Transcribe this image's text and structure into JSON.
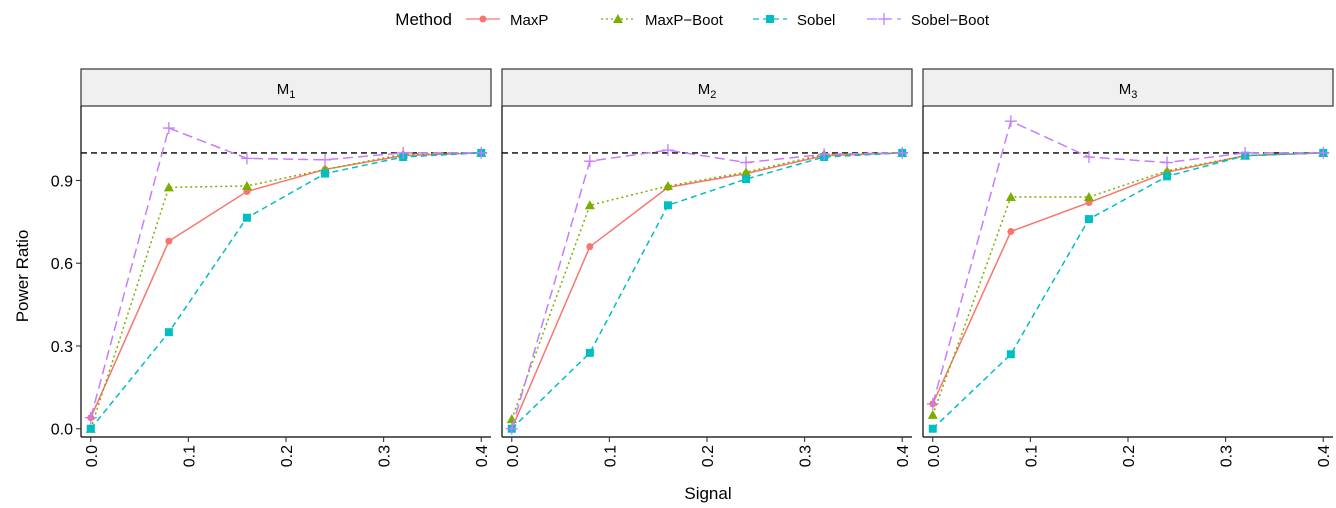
{
  "chart_data": {
    "type": "line",
    "xlabel": "Signal",
    "ylabel": "Power Ratio",
    "legend": {
      "title": "Method",
      "position": "top"
    },
    "x": [
      0.0,
      0.08,
      0.16,
      0.24,
      0.32,
      0.4
    ],
    "xticks": [
      "0.0",
      "0.1",
      "0.2",
      "0.3",
      "0.4"
    ],
    "xtick_values": [
      0.0,
      0.1,
      0.2,
      0.3,
      0.4
    ],
    "yticks": [
      "0.0",
      "0.3",
      "0.6",
      "0.9"
    ],
    "ytick_values": [
      0.0,
      0.3,
      0.6,
      0.9
    ],
    "xlim": [
      -0.01,
      0.41
    ],
    "ylim": [
      -0.03,
      1.17
    ],
    "reference_line": 1.0,
    "grid": false,
    "series_styles": [
      {
        "name": "MaxP",
        "color": "#F8766D",
        "dash": "none",
        "marker": "circle"
      },
      {
        "name": "MaxP−Boot",
        "color": "#7CAE00",
        "dash": "dotted",
        "marker": "triangle"
      },
      {
        "name": "Sobel",
        "color": "#00BFC4",
        "dash": "dashed",
        "marker": "square"
      },
      {
        "name": "Sobel−Boot",
        "color": "#C77CFF",
        "dash": "longdash",
        "marker": "plus"
      }
    ],
    "panels": [
      {
        "label": "M",
        "sub": "1",
        "series": [
          {
            "name": "MaxP",
            "values": [
              0.04,
              0.68,
              0.86,
              0.94,
              0.99,
              1.0
            ]
          },
          {
            "name": "MaxP−Boot",
            "values": [
              0.0,
              0.875,
              0.88,
              0.94,
              0.995,
              1.0
            ]
          },
          {
            "name": "Sobel",
            "values": [
              0.0,
              0.35,
              0.765,
              0.925,
              0.985,
              1.0
            ]
          },
          {
            "name": "Sobel−Boot",
            "values": [
              0.04,
              1.09,
              0.98,
              0.975,
              1.0,
              1.0
            ]
          }
        ]
      },
      {
        "label": "M",
        "sub": "2",
        "series": [
          {
            "name": "MaxP",
            "values": [
              0.0,
              0.66,
              0.875,
              0.925,
              0.99,
              1.0
            ]
          },
          {
            "name": "MaxP−Boot",
            "values": [
              0.035,
              0.81,
              0.88,
              0.93,
              0.995,
              1.0
            ]
          },
          {
            "name": "Sobel",
            "values": [
              0.0,
              0.275,
              0.81,
              0.905,
              0.985,
              1.0
            ]
          },
          {
            "name": "Sobel−Boot",
            "values": [
              0.0,
              0.97,
              1.01,
              0.965,
              0.995,
              1.0
            ]
          }
        ]
      },
      {
        "label": "M",
        "sub": "3",
        "series": [
          {
            "name": "MaxP",
            "values": [
              0.09,
              0.715,
              0.82,
              0.93,
              0.99,
              1.0
            ]
          },
          {
            "name": "MaxP−Boot",
            "values": [
              0.05,
              0.84,
              0.84,
              0.935,
              0.99,
              1.0
            ]
          },
          {
            "name": "Sobel",
            "values": [
              0.0,
              0.27,
              0.76,
              0.915,
              0.99,
              1.0
            ]
          },
          {
            "name": "Sobel−Boot",
            "values": [
              0.09,
              1.115,
              0.985,
              0.965,
              1.0,
              1.0
            ]
          }
        ]
      }
    ]
  }
}
